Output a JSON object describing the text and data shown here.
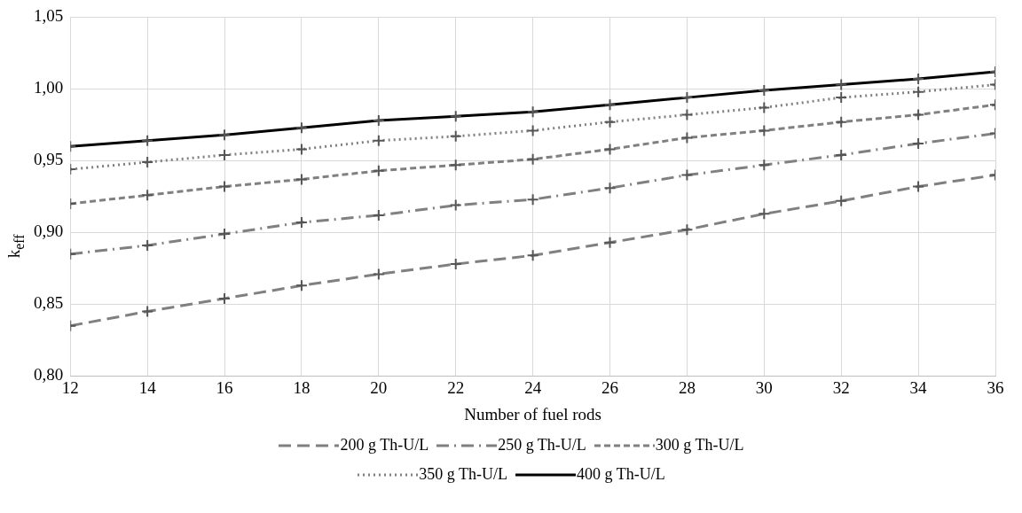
{
  "chart_data": {
    "type": "line",
    "xlabel": "Number of fuel rods",
    "ylabel": "k$_{eff}$",
    "x": [
      12,
      14,
      16,
      18,
      20,
      22,
      24,
      26,
      28,
      30,
      32,
      34,
      36
    ],
    "xlim": [
      12,
      36
    ],
    "xticks": [
      12,
      14,
      16,
      18,
      20,
      22,
      24,
      26,
      28,
      30,
      32,
      34,
      36
    ],
    "ylim": [
      0.8,
      1.05
    ],
    "yticks": [
      {
        "value": 0.8,
        "label": "0,80"
      },
      {
        "value": 0.85,
        "label": "0,85"
      },
      {
        "value": 0.9,
        "label": "0,90"
      },
      {
        "value": 0.95,
        "label": "0,95"
      },
      {
        "value": 1.0,
        "label": "1,00"
      },
      {
        "value": 1.05,
        "label": "1,05"
      }
    ],
    "grid": true,
    "legend": "bottom",
    "marker": "cross",
    "series": [
      {
        "name": "200 g Th-U/L",
        "color": "#808080",
        "line_style": "dashed",
        "values": [
          0.835,
          0.845,
          0.854,
          0.863,
          0.871,
          0.878,
          0.884,
          0.893,
          0.902,
          0.913,
          0.922,
          0.932,
          0.94
        ]
      },
      {
        "name": "250 g Th-U/L",
        "color": "#808080",
        "line_style": "dashdot",
        "values": [
          0.885,
          0.891,
          0.899,
          0.907,
          0.912,
          0.919,
          0.923,
          0.931,
          0.94,
          0.947,
          0.954,
          0.962,
          0.969
        ]
      },
      {
        "name": "300 g Th-U/L",
        "color": "#808080",
        "line_style": "dashed",
        "values": [
          0.92,
          0.926,
          0.932,
          0.937,
          0.943,
          0.947,
          0.951,
          0.958,
          0.966,
          0.971,
          0.977,
          0.982,
          0.989
        ]
      },
      {
        "name": "350 g Th-U/L",
        "color": "#808080",
        "line_style": "dotted",
        "values": [
          0.944,
          0.949,
          0.954,
          0.958,
          0.964,
          0.967,
          0.971,
          0.977,
          0.982,
          0.987,
          0.994,
          0.998,
          1.003
        ]
      },
      {
        "name": "400 g Th-U/L",
        "color": "#000000",
        "line_style": "solid",
        "values": [
          0.96,
          0.964,
          0.968,
          0.973,
          0.978,
          0.981,
          0.984,
          0.989,
          0.994,
          0.999,
          1.003,
          1.007,
          1.012
        ]
      }
    ]
  }
}
